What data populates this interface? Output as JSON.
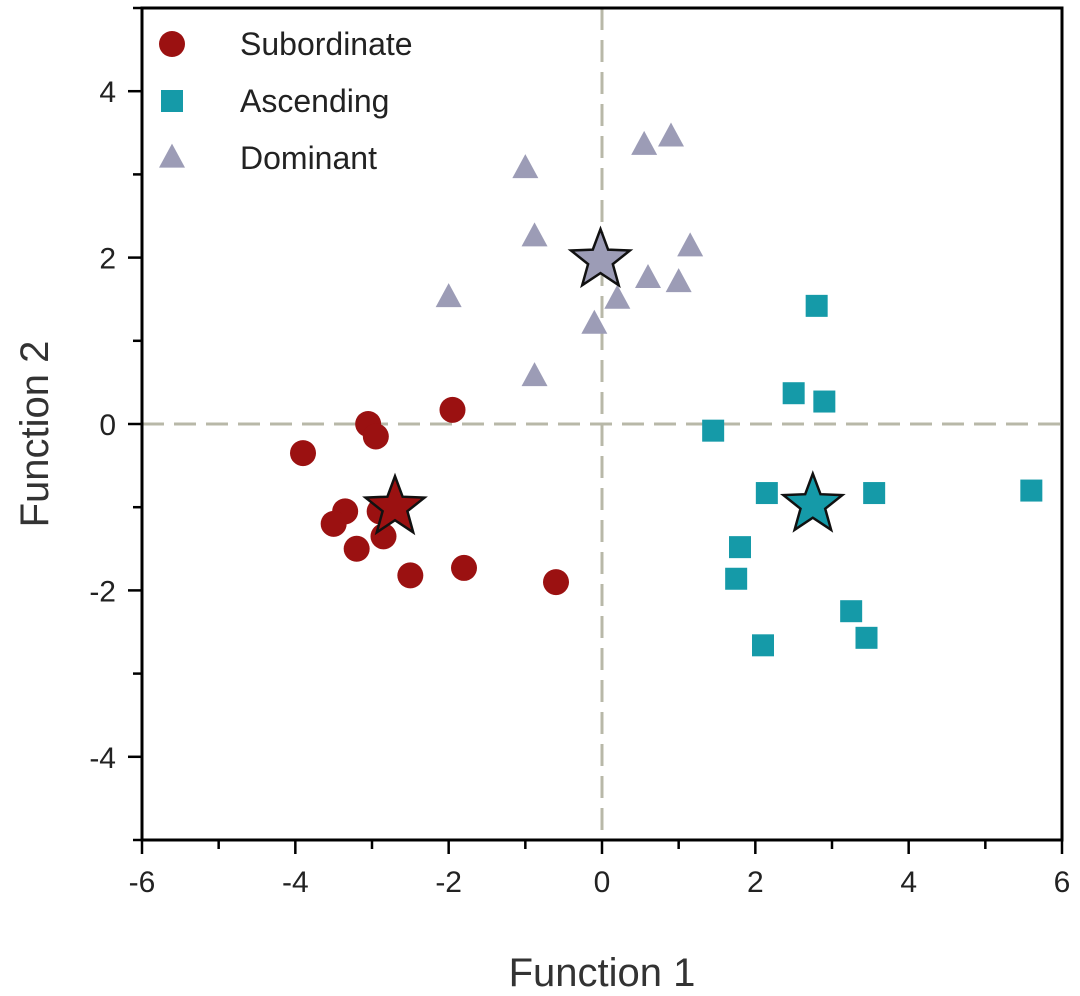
{
  "chart_data": {
    "type": "scatter",
    "xlabel": "Function 1",
    "ylabel": "Function 2",
    "xlim": [
      -6,
      6
    ],
    "ylim": [
      -5,
      5
    ],
    "x_ticks": [
      -6,
      -4,
      -2,
      0,
      2,
      4,
      6
    ],
    "y_ticks": [
      -4,
      -2,
      0,
      2,
      4
    ],
    "x_tick_labels": [
      "-6",
      "-4",
      "-2",
      "0",
      "2",
      "4",
      "6"
    ],
    "y_tick_labels": [
      "-4",
      "-2",
      "0",
      "2",
      "4"
    ],
    "reference_lines": {
      "x": 0,
      "y": 0,
      "style": "dashed",
      "color": "#b8b8a8"
    },
    "legend_position": "top-left",
    "series": [
      {
        "name": "Subordinate",
        "marker": "circle",
        "color": "#9b1111",
        "points": [
          [
            -3.9,
            -0.35
          ],
          [
            -3.05,
            0.0
          ],
          [
            -2.95,
            -0.15
          ],
          [
            -1.95,
            0.17
          ],
          [
            -3.35,
            -1.05
          ],
          [
            -3.5,
            -1.2
          ],
          [
            -2.9,
            -1.05
          ],
          [
            -2.85,
            -1.35
          ],
          [
            -3.2,
            -1.5
          ],
          [
            -2.5,
            -1.82
          ],
          [
            -1.8,
            -1.73
          ],
          [
            -0.6,
            -1.9
          ]
        ],
        "centroid": [
          -2.7,
          -1.0
        ]
      },
      {
        "name": "Ascending",
        "marker": "square",
        "color": "#159aa8",
        "points": [
          [
            2.8,
            1.42
          ],
          [
            2.5,
            0.37
          ],
          [
            2.9,
            0.27
          ],
          [
            1.45,
            -0.08
          ],
          [
            2.15,
            -0.83
          ],
          [
            3.55,
            -0.83
          ],
          [
            5.6,
            -0.8
          ],
          [
            1.8,
            -1.48
          ],
          [
            1.75,
            -1.86
          ],
          [
            3.25,
            -2.25
          ],
          [
            3.45,
            -2.57
          ],
          [
            2.1,
            -2.66
          ]
        ],
        "centroid": [
          2.75,
          -0.97
        ]
      },
      {
        "name": "Dominant",
        "marker": "triangle",
        "color": "#9c9cb6",
        "points": [
          [
            -1.0,
            3.07
          ],
          [
            0.55,
            3.35
          ],
          [
            0.9,
            3.45
          ],
          [
            -0.88,
            2.25
          ],
          [
            1.15,
            2.13
          ],
          [
            -2.0,
            1.52
          ],
          [
            0.6,
            1.75
          ],
          [
            1.0,
            1.7
          ],
          [
            0.2,
            1.5
          ],
          [
            -0.1,
            1.2
          ],
          [
            -0.88,
            0.57
          ]
        ],
        "centroid": [
          -0.02,
          1.97
        ]
      }
    ]
  }
}
